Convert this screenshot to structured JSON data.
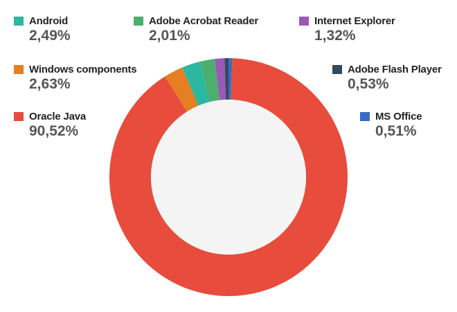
{
  "chart_data": {
    "type": "pie",
    "subtype": "donut",
    "legend_placement": "around",
    "categories": [
      "Android",
      "Adobe Acrobat Reader",
      "Internet Explorer",
      "Windows components",
      "Adobe Flash Player",
      "Oracle Java",
      "MS Office"
    ],
    "values": [
      2.49,
      2.01,
      1.32,
      2.63,
      0.53,
      90.52,
      0.51
    ],
    "labels": [
      "2,49%",
      "2,01%",
      "1,32%",
      "2,63%",
      "0,53%",
      "90,52%",
      "0,51%"
    ],
    "colors": [
      "#2bb7a0",
      "#4caf6e",
      "#9b59b6",
      "#e67e22",
      "#34495e",
      "#e74c3c",
      "#3a6bc4"
    ],
    "slice_order": [
      "MS Office",
      "Oracle Java",
      "Windows components",
      "Android",
      "Adobe Acrobat Reader",
      "Internet Explorer",
      "Adobe Flash Player"
    ],
    "hole_color": "#f4f4f4"
  }
}
